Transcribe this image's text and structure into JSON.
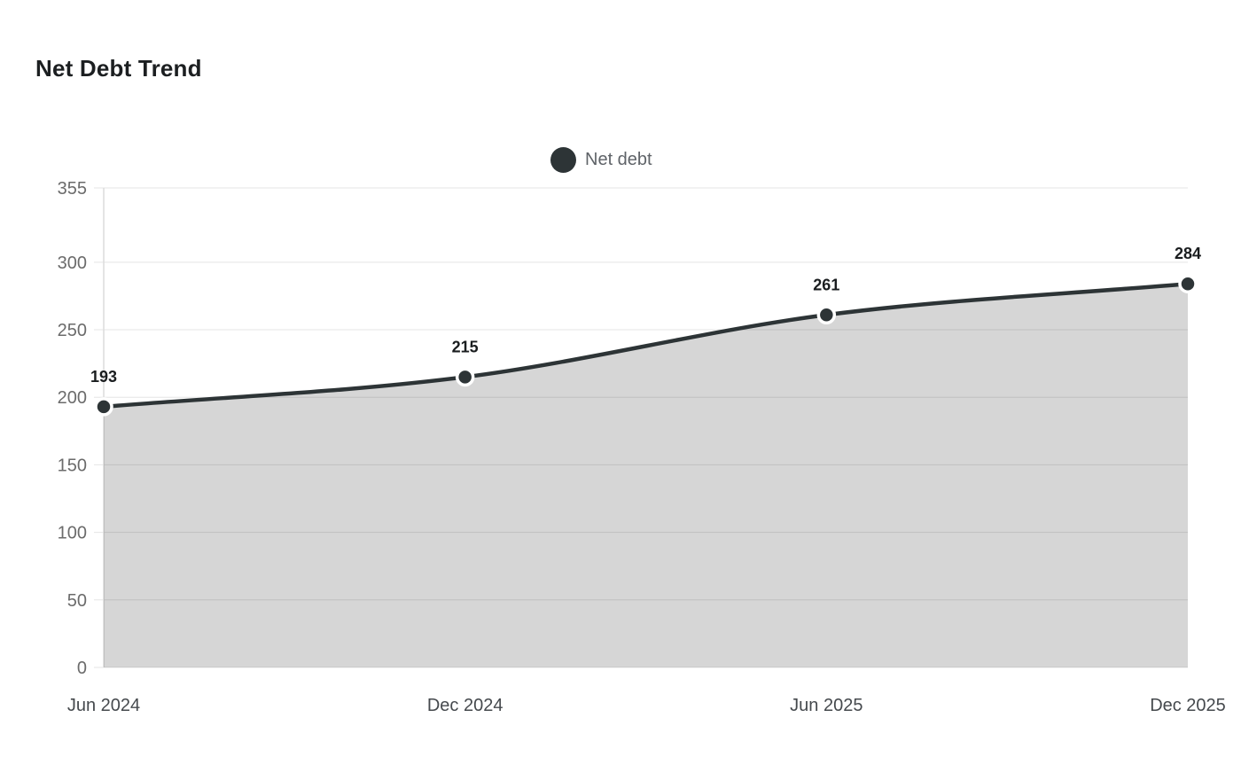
{
  "chart_data": {
    "type": "area",
    "title": "Net Debt Trend",
    "categories": [
      "Jun 2024",
      "Dec 2024",
      "Jun 2025",
      "Dec 2025"
    ],
    "series": [
      {
        "name": "Net debt",
        "values": [
          193,
          215,
          261,
          284
        ]
      }
    ],
    "point_labels": [
      "193",
      "215",
      "261",
      "284"
    ],
    "xlabel": "",
    "ylabel": "",
    "ylim": [
      0,
      355
    ],
    "yticks": [
      0,
      50,
      100,
      150,
      200,
      250,
      300,
      355
    ],
    "grid": "horizontal",
    "legend_position": "top-center",
    "curve": "monotone",
    "colors": {
      "line": "#2d3436",
      "marker_fill": "#2d3436",
      "marker_ring": "#ffffff",
      "area_fill": "rgba(0,0,0,0.16)",
      "grid": "#e5e5e5",
      "axis_line": "#dcdcdc",
      "title_text": "#1c1f21",
      "value_label_text": "#1a1d1f",
      "y_tick_text": "#6b6b6b",
      "x_tick_text": "#45494d",
      "legend_text": "#5f6368",
      "background": "#ffffff"
    }
  }
}
